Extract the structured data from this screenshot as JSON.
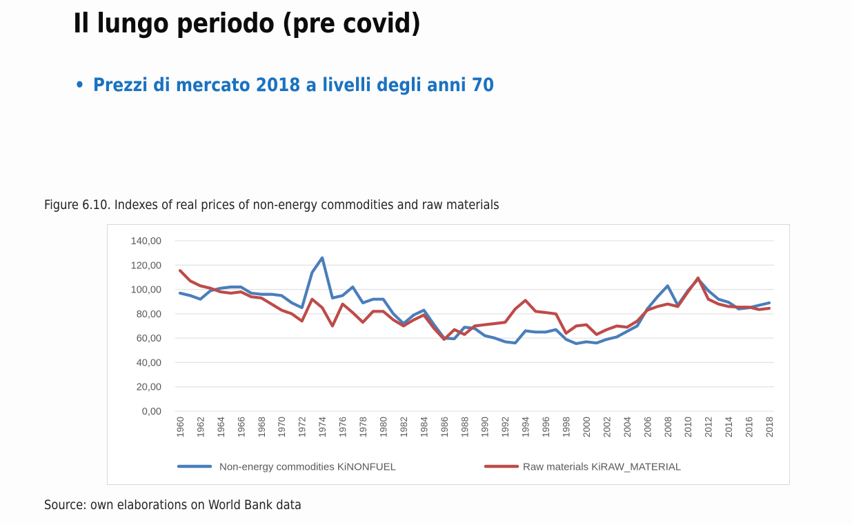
{
  "slide": {
    "title": "Il lungo periodo (pre covid)",
    "bullet_symbol": "•",
    "bullet_text": "Prezzi di mercato 2018 a livelli degli anni 70",
    "bullet_color": "#1a72c0"
  },
  "figure": {
    "caption": "Figure 6.10. Indexes of real prices of non-energy commodities and raw materials",
    "source": "Source: own elaborations on World Bank data"
  },
  "chart_data": {
    "type": "line",
    "title": "Figure 6.10. Indexes of real prices of non-energy commodities and raw materials",
    "xlabel": "",
    "ylabel": "",
    "ylim": [
      0,
      140
    ],
    "yticks": [
      0,
      20,
      40,
      60,
      80,
      100,
      120,
      140
    ],
    "ytick_labels": [
      "0,00",
      "20,00",
      "40,00",
      "60,00",
      "80,00",
      "100,00",
      "120,00",
      "140,00"
    ],
    "xtick_labels": [
      "1960",
      "1962",
      "1964",
      "1966",
      "1968",
      "1970",
      "1972",
      "1974",
      "1976",
      "1978",
      "1980",
      "1982",
      "1984",
      "1986",
      "1988",
      "1990",
      "1992",
      "1994",
      "1996",
      "1998",
      "2000",
      "2002",
      "2004",
      "2006",
      "2008",
      "2010",
      "2012",
      "2014",
      "2016",
      "2018"
    ],
    "grid": true,
    "legend_position": "bottom",
    "x": [
      1960,
      1961,
      1962,
      1963,
      1964,
      1965,
      1966,
      1967,
      1968,
      1969,
      1970,
      1971,
      1972,
      1973,
      1974,
      1975,
      1976,
      1977,
      1978,
      1979,
      1980,
      1981,
      1982,
      1983,
      1984,
      1985,
      1986,
      1987,
      1988,
      1989,
      1990,
      1991,
      1992,
      1993,
      1994,
      1995,
      1996,
      1997,
      1998,
      1999,
      2000,
      2001,
      2002,
      2003,
      2004,
      2005,
      2006,
      2007,
      2008,
      2009,
      2010,
      2011,
      2012,
      2013,
      2014,
      2015,
      2016,
      2017,
      2018
    ],
    "series": [
      {
        "name": "Non-energy commodities KiNONFUEL",
        "color": "#4a7ebb",
        "values": [
          97,
          95,
          92,
          99,
          101,
          102,
          102,
          97,
          96,
          96,
          95,
          89,
          85,
          114,
          126,
          93,
          95,
          102,
          89,
          92,
          92,
          80,
          72,
          79,
          83,
          71,
          60,
          59.5,
          69,
          68,
          62,
          60,
          57,
          56,
          66,
          65,
          65,
          67,
          59,
          55.5,
          57,
          56,
          59,
          61,
          65.5,
          70,
          84,
          94,
          103,
          87,
          99,
          108.5,
          99,
          92,
          89.5,
          84,
          85,
          87,
          89
        ]
      },
      {
        "name": "Raw materials KiRAW_MATERIAL",
        "color": "#be4b48",
        "values": [
          115.5,
          107,
          103,
          101,
          98,
          97,
          98,
          94,
          93,
          88,
          83,
          80,
          74,
          92,
          85,
          70,
          88,
          81,
          73,
          82,
          82,
          75,
          70,
          75,
          79,
          68,
          59,
          67,
          63,
          70,
          71,
          72,
          73,
          84,
          91,
          82,
          81,
          80,
          64,
          70,
          71,
          63,
          67,
          70,
          69,
          74,
          83,
          86,
          88,
          86,
          98,
          109.5,
          92,
          88,
          86,
          85.5,
          85.5,
          83.5,
          84.5
        ]
      }
    ]
  }
}
